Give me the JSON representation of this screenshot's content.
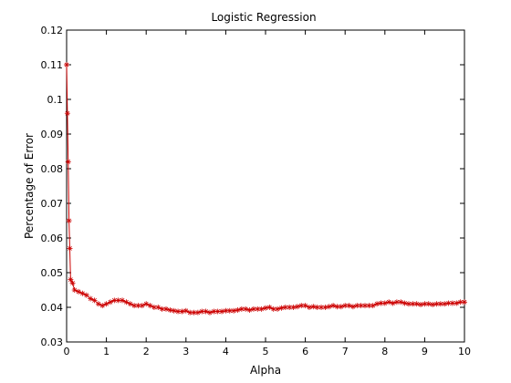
{
  "chart_data": {
    "type": "line",
    "title": "Logistic Regression",
    "xlabel": "Alpha",
    "ylabel": "Percentage of Error",
    "xlim": [
      0,
      10
    ],
    "ylim": [
      0.03,
      0.12
    ],
    "x_ticks": [
      "0",
      "1",
      "2",
      "3",
      "4",
      "5",
      "6",
      "7",
      "8",
      "9",
      "10"
    ],
    "y_ticks": [
      "0.03",
      "0.04",
      "0.05",
      "0.06",
      "0.07",
      "0.08",
      "0.09",
      "0.1",
      "0.11",
      "0.12"
    ],
    "grid": false,
    "marker": "asterisk",
    "line_color": "#cc0000",
    "marker_color": "#cc0000",
    "series": [
      {
        "x": [
          0,
          0.02,
          0.04,
          0.06,
          0.08,
          0.1,
          0.15,
          0.2,
          0.3,
          0.4,
          0.5,
          0.6,
          0.7,
          0.8,
          0.9,
          1.0,
          1.1,
          1.2,
          1.3,
          1.4,
          1.5,
          1.6,
          1.7,
          1.8,
          1.9,
          2.0,
          2.1,
          2.2,
          2.3,
          2.4,
          2.5,
          2.6,
          2.7,
          2.8,
          2.9,
          3.0,
          3.1,
          3.2,
          3.3,
          3.4,
          3.5,
          3.6,
          3.7,
          3.8,
          3.9,
          4.0,
          4.1,
          4.2,
          4.3,
          4.4,
          4.5,
          4.6,
          4.7,
          4.8,
          4.9,
          5.0,
          5.1,
          5.2,
          5.3,
          5.4,
          5.5,
          5.6,
          5.7,
          5.8,
          5.9,
          6.0,
          6.1,
          6.2,
          6.3,
          6.4,
          6.5,
          6.6,
          6.7,
          6.8,
          6.9,
          7.0,
          7.1,
          7.2,
          7.3,
          7.4,
          7.5,
          7.6,
          7.7,
          7.8,
          7.9,
          8.0,
          8.1,
          8.2,
          8.3,
          8.4,
          8.5,
          8.6,
          8.7,
          8.8,
          8.9,
          9.0,
          9.1,
          9.2,
          9.3,
          9.4,
          9.5,
          9.6,
          9.7,
          9.8,
          9.9,
          10.0
        ],
        "y": [
          0.11,
          0.096,
          0.082,
          0.065,
          0.057,
          0.048,
          0.047,
          0.045,
          0.0445,
          0.044,
          0.0435,
          0.0425,
          0.042,
          0.041,
          0.0405,
          0.041,
          0.0415,
          0.042,
          0.042,
          0.042,
          0.0415,
          0.041,
          0.0405,
          0.0405,
          0.0405,
          0.041,
          0.0405,
          0.04,
          0.04,
          0.0395,
          0.0395,
          0.0392,
          0.039,
          0.0388,
          0.0388,
          0.039,
          0.0385,
          0.0385,
          0.0385,
          0.0388,
          0.0388,
          0.0385,
          0.0388,
          0.0388,
          0.0388,
          0.039,
          0.039,
          0.039,
          0.0392,
          0.0395,
          0.0395,
          0.0392,
          0.0395,
          0.0395,
          0.0395,
          0.0398,
          0.04,
          0.0395,
          0.0395,
          0.0398,
          0.04,
          0.04,
          0.04,
          0.0402,
          0.0405,
          0.0405,
          0.04,
          0.0402,
          0.04,
          0.04,
          0.04,
          0.0402,
          0.0405,
          0.0402,
          0.0402,
          0.0405,
          0.0405,
          0.0402,
          0.0405,
          0.0405,
          0.0405,
          0.0405,
          0.0405,
          0.041,
          0.0412,
          0.0412,
          0.0415,
          0.0412,
          0.0415,
          0.0415,
          0.0412,
          0.041,
          0.041,
          0.041,
          0.0408,
          0.041,
          0.041,
          0.0408,
          0.041,
          0.041,
          0.041,
          0.0412,
          0.0412,
          0.0412,
          0.0415,
          0.0415
        ]
      }
    ]
  }
}
